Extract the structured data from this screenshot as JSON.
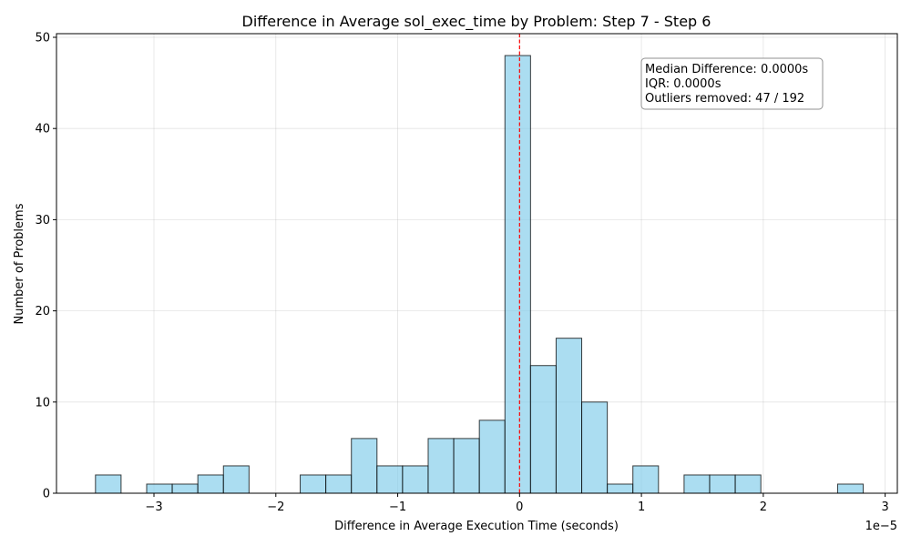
{
  "chart_data": {
    "type": "bar",
    "title": "Difference in Average sol_exec_time by Problem: Step 7 - Step 6",
    "xlabel": "Difference in Average Execution Time (seconds)",
    "ylabel": "Number of Problems",
    "x_scale_label": "1e−5",
    "xlim": [
      -3.8,
      3.1
    ],
    "ylim": [
      0,
      50.4
    ],
    "x_ticks": [
      -3,
      -2,
      -1,
      0,
      1,
      2,
      3
    ],
    "x_tick_labels": [
      "−3",
      "−2",
      "−1",
      "0",
      "1",
      "2",
      "3"
    ],
    "y_ticks": [
      0,
      10,
      20,
      30,
      40,
      50
    ],
    "y_tick_labels": [
      "0",
      "10",
      "20",
      "30",
      "40",
      "50"
    ],
    "grid": true,
    "bin_edges": [
      -3.48,
      -3.27,
      -3.06,
      -2.85,
      -2.64,
      -2.43,
      -2.22,
      -2.01,
      -1.8,
      -1.59,
      -1.38,
      -1.17,
      -0.96,
      -0.75,
      -0.54,
      -0.33,
      -0.12,
      0.09,
      0.3,
      0.51,
      0.72,
      0.93,
      1.14,
      1.35,
      1.56,
      1.77,
      1.98,
      2.19,
      2.4,
      2.61,
      2.82
    ],
    "counts": [
      2,
      0,
      1,
      1,
      2,
      3,
      0,
      0,
      2,
      2,
      6,
      3,
      3,
      6,
      6,
      8,
      48,
      14,
      17,
      10,
      1,
      3,
      0,
      2,
      2,
      2,
      0,
      0,
      0,
      1
    ],
    "bar_color": "#87ceeb",
    "reference_line": {
      "x": 0,
      "color": "#ff0000",
      "style": "dashed"
    },
    "stats_box": {
      "lines": [
        "Median Difference: 0.0000s",
        "IQR: 0.0000s",
        "Outliers removed: 47 / 192"
      ]
    }
  }
}
